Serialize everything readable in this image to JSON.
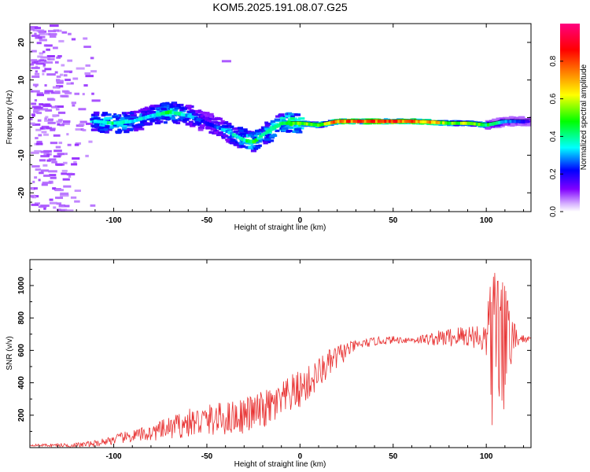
{
  "figure_title": "KOM5.2025.191.08.07.G25",
  "chart_data": [
    {
      "type": "heatmap",
      "title": "KOM5.2025.191.08.07.G25",
      "xlabel": "Height of straight line (km)",
      "ylabel": "Frequency (Hz)",
      "xlim": [
        -145,
        124
      ],
      "ylim": [
        -25,
        25
      ],
      "x_ticks": [
        -100,
        -50,
        0,
        50,
        100
      ],
      "y_ticks": [
        -20,
        -10,
        0,
        10,
        20
      ],
      "colorbar": {
        "label": "Normalized spectral amplitude",
        "range": [
          0,
          1
        ],
        "ticks": [
          0.0,
          0.2,
          0.4,
          0.6,
          0.8
        ],
        "colormap": [
          "#d8b4ff",
          "#8000ff",
          "#0000ff",
          "#00ffff",
          "#00ff00",
          "#ffff00",
          "#ff8000",
          "#ff0000",
          "#ff0080"
        ]
      },
      "ridge": {
        "description_x": [
          -110,
          -100,
          -90,
          -80,
          -70,
          -60,
          -50,
          -40,
          -30,
          -25,
          -20,
          -10,
          0,
          10,
          20,
          30,
          40,
          50,
          60,
          70,
          80,
          90,
          100,
          110,
          120
        ],
        "frequency": [
          -1,
          -1.5,
          -1,
          0.5,
          1.5,
          0.5,
          -1.5,
          -3.5,
          -6,
          -6.5,
          -4.5,
          -1.5,
          -1.5,
          -2,
          -1,
          -1,
          -1,
          -1,
          -1,
          -1.2,
          -1.5,
          -1.5,
          -2,
          -1,
          -1
        ],
        "amplitude": [
          0.35,
          0.4,
          0.35,
          0.3,
          0.45,
          0.3,
          0.2,
          0.3,
          0.4,
          0.45,
          0.35,
          0.45,
          0.55,
          0.5,
          0.75,
          0.8,
          0.8,
          0.8,
          0.75,
          0.7,
          0.5,
          0.55,
          0.45,
          0.3,
          0.2
        ]
      }
    },
    {
      "type": "line",
      "xlabel": "Height of straight line (km)",
      "ylabel": "SNR (v/v)",
      "xlim": [
        -145,
        124
      ],
      "ylim": [
        0,
        1160
      ],
      "x_ticks": [
        -100,
        -50,
        0,
        50,
        100
      ],
      "y_ticks": [
        200,
        400,
        600,
        800,
        1000
      ],
      "color": "#e83232",
      "trend": {
        "x": [
          -145,
          -120,
          -110,
          -100,
          -90,
          -80,
          -70,
          -60,
          -50,
          -40,
          -30,
          -20,
          -10,
          -5,
          0,
          5,
          10,
          15,
          20,
          25,
          30,
          40,
          50,
          60,
          70,
          80,
          90,
          95,
          100,
          103,
          105,
          108,
          110,
          115,
          124
        ],
        "snr": [
          15,
          15,
          25,
          50,
          70,
          90,
          120,
          150,
          170,
          180,
          200,
          230,
          280,
          330,
          360,
          400,
          460,
          510,
          560,
          600,
          630,
          655,
          665,
          665,
          670,
          680,
          690,
          690,
          660,
          660,
          650,
          640,
          650,
          670,
          670
        ]
      },
      "noise_amplitude": {
        "x": [
          -145,
          -110,
          -80,
          -60,
          -20,
          0,
          20,
          30,
          60,
          80,
          95,
          100,
          103,
          108,
          112,
          118,
          124
        ],
        "amp": [
          5,
          20,
          50,
          90,
          120,
          120,
          80,
          30,
          20,
          60,
          80,
          120,
          500,
          500,
          200,
          30,
          15
        ]
      }
    }
  ]
}
